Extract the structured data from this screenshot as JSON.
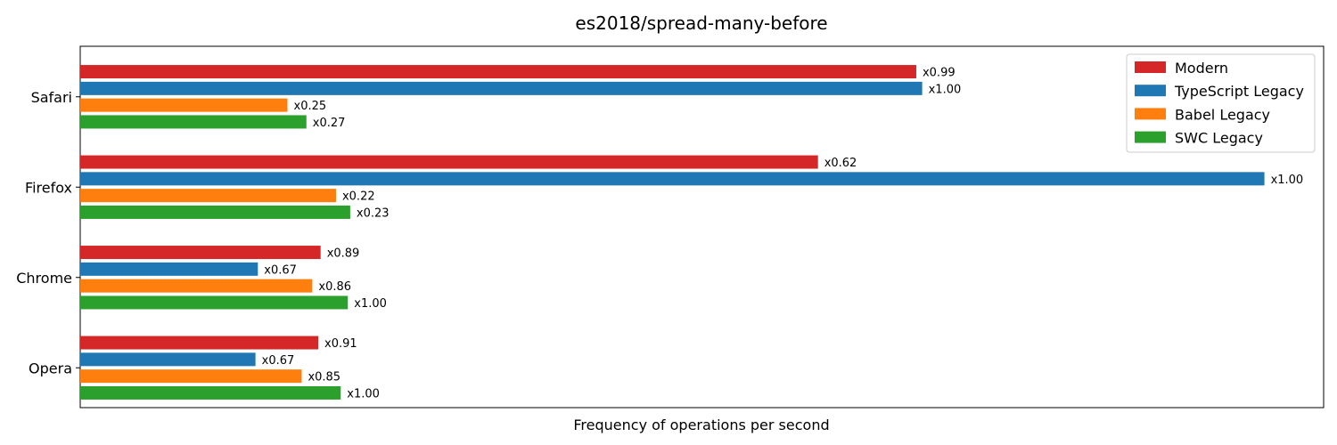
{
  "chart_data": {
    "type": "bar",
    "orientation": "horizontal",
    "title": "es2018/spread-many-before",
    "xlabel": "Frequency of operations per second",
    "ylabel": "",
    "categories": [
      "Safari",
      "Firefox",
      "Chrome",
      "Opera"
    ],
    "x_ticks_shown": false,
    "grid": false,
    "legend_position": "top-right",
    "series": [
      {
        "name": "Modern",
        "color": "#d62728",
        "values": [
          0.706,
          0.623,
          0.203,
          0.201
        ],
        "labels": [
          "x0.99",
          "x0.62",
          "x0.89",
          "x0.91"
        ]
      },
      {
        "name": "TypeScript Legacy",
        "color": "#1f77b4",
        "values": [
          0.711,
          1.0,
          0.15,
          0.148
        ],
        "labels": [
          "x1.00",
          "x1.00",
          "x0.67",
          "x0.67"
        ]
      },
      {
        "name": "Babel Legacy",
        "color": "#ff7f0e",
        "values": [
          0.175,
          0.216,
          0.196,
          0.187
        ],
        "labels": [
          "x0.25",
          "x0.22",
          "x0.86",
          "x0.85"
        ]
      },
      {
        "name": "SWC Legacy",
        "color": "#2ca02c",
        "values": [
          0.191,
          0.228,
          0.226,
          0.22
        ],
        "labels": [
          "x0.27",
          "x0.23",
          "x1.00",
          "x1.00"
        ]
      }
    ],
    "xlim": [
      0,
      1.05
    ]
  }
}
